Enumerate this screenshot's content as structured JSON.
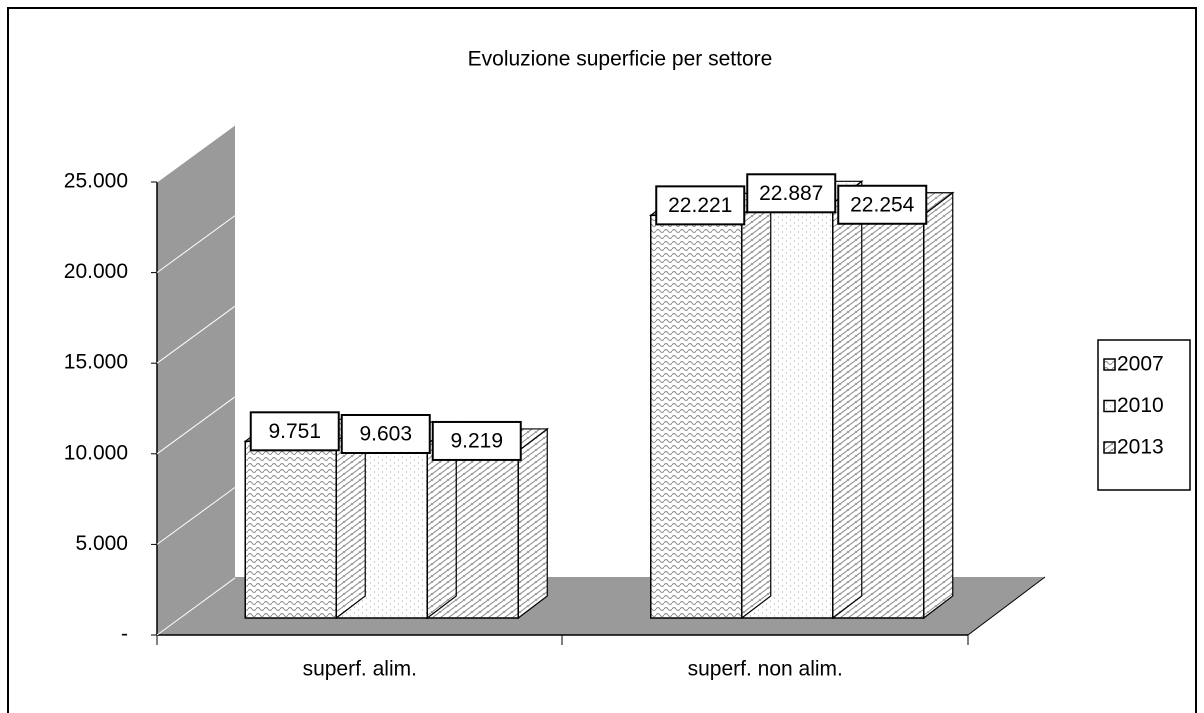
{
  "chart_data": {
    "type": "bar3d",
    "title": "Evoluzione superficie per settore",
    "categories": [
      "superf. alim.",
      "superf. non alim."
    ],
    "series": [
      {
        "name": "2007",
        "color": "#8a8a8a",
        "values": [
          9751,
          22221
        ],
        "value_labels": [
          "9.751",
          "22.221"
        ]
      },
      {
        "name": "2010",
        "color": "#b0b0b0",
        "values": [
          9603,
          22887
        ],
        "value_labels": [
          "9.603",
          "22.887"
        ]
      },
      {
        "name": "2013",
        "color": "#8a8a8a",
        "values": [
          9219,
          22254
        ],
        "value_labels": [
          "9.219",
          "22.254"
        ]
      }
    ],
    "ylim": [
      0,
      25000
    ],
    "yticks": [
      {
        "value": 0,
        "label": "-"
      },
      {
        "value": 5000,
        "label": "5.000"
      },
      {
        "value": 10000,
        "label": "10.000"
      },
      {
        "value": 15000,
        "label": "15.000"
      },
      {
        "value": 20000,
        "label": "20.000"
      },
      {
        "value": 25000,
        "label": "25.000"
      }
    ],
    "grid": true,
    "legend": "right"
  }
}
